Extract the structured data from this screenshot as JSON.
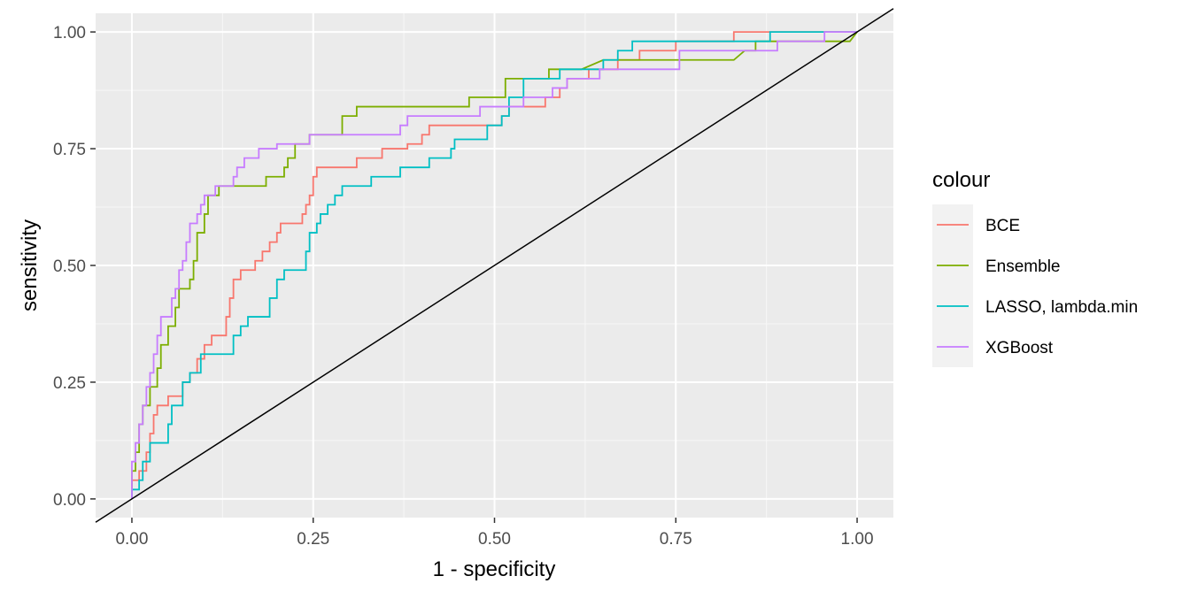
{
  "chart_data": {
    "type": "line",
    "title": "",
    "xlabel": "1 - specificity",
    "ylabel": "sensitivity",
    "xlim": [
      -0.05,
      1.05
    ],
    "ylim": [
      -0.04,
      1.04
    ],
    "x_ticks": [
      0,
      0.25,
      0.5,
      0.75,
      1
    ],
    "x_tick_labels": [
      "0.00",
      "0.25",
      "0.50",
      "0.75",
      "1.00"
    ],
    "y_ticks": [
      0,
      0.25,
      0.5,
      0.75,
      1
    ],
    "y_tick_labels": [
      "0.00",
      "0.25",
      "0.50",
      "0.75",
      "1.00"
    ],
    "grid": true,
    "background": "#ebebeb",
    "legend": {
      "title": "colour",
      "position": "right"
    },
    "reference_line": {
      "x": [
        0,
        1
      ],
      "y": [
        0,
        1
      ],
      "color": "#000000"
    },
    "series": [
      {
        "name": "BCE",
        "color": "#F8766D",
        "points": [
          [
            0,
            0
          ],
          [
            0,
            0.04
          ],
          [
            0.01,
            0.04
          ],
          [
            0.01,
            0.06
          ],
          [
            0.02,
            0.06
          ],
          [
            0.02,
            0.1
          ],
          [
            0.025,
            0.1
          ],
          [
            0.025,
            0.14
          ],
          [
            0.03,
            0.14
          ],
          [
            0.03,
            0.18
          ],
          [
            0.035,
            0.18
          ],
          [
            0.035,
            0.2
          ],
          [
            0.05,
            0.2
          ],
          [
            0.05,
            0.22
          ],
          [
            0.07,
            0.22
          ],
          [
            0.07,
            0.25
          ],
          [
            0.08,
            0.25
          ],
          [
            0.08,
            0.27
          ],
          [
            0.09,
            0.27
          ],
          [
            0.09,
            0.3
          ],
          [
            0.1,
            0.3
          ],
          [
            0.1,
            0.33
          ],
          [
            0.11,
            0.33
          ],
          [
            0.11,
            0.35
          ],
          [
            0.13,
            0.35
          ],
          [
            0.13,
            0.39
          ],
          [
            0.135,
            0.39
          ],
          [
            0.135,
            0.43
          ],
          [
            0.14,
            0.43
          ],
          [
            0.14,
            0.47
          ],
          [
            0.15,
            0.47
          ],
          [
            0.15,
            0.49
          ],
          [
            0.17,
            0.49
          ],
          [
            0.17,
            0.51
          ],
          [
            0.18,
            0.51
          ],
          [
            0.18,
            0.53
          ],
          [
            0.19,
            0.53
          ],
          [
            0.19,
            0.55
          ],
          [
            0.2,
            0.55
          ],
          [
            0.2,
            0.57
          ],
          [
            0.205,
            0.57
          ],
          [
            0.205,
            0.59
          ],
          [
            0.235,
            0.59
          ],
          [
            0.235,
            0.61
          ],
          [
            0.24,
            0.61
          ],
          [
            0.24,
            0.63
          ],
          [
            0.245,
            0.63
          ],
          [
            0.245,
            0.65
          ],
          [
            0.25,
            0.65
          ],
          [
            0.25,
            0.69
          ],
          [
            0.255,
            0.69
          ],
          [
            0.255,
            0.71
          ],
          [
            0.31,
            0.71
          ],
          [
            0.31,
            0.73
          ],
          [
            0.345,
            0.73
          ],
          [
            0.345,
            0.75
          ],
          [
            0.38,
            0.75
          ],
          [
            0.38,
            0.76
          ],
          [
            0.4,
            0.76
          ],
          [
            0.4,
            0.78
          ],
          [
            0.41,
            0.78
          ],
          [
            0.41,
            0.8
          ],
          [
            0.51,
            0.8
          ],
          [
            0.51,
            0.82
          ],
          [
            0.52,
            0.82
          ],
          [
            0.52,
            0.84
          ],
          [
            0.57,
            0.84
          ],
          [
            0.57,
            0.86
          ],
          [
            0.59,
            0.86
          ],
          [
            0.59,
            0.88
          ],
          [
            0.6,
            0.88
          ],
          [
            0.6,
            0.9
          ],
          [
            0.63,
            0.9
          ],
          [
            0.63,
            0.92
          ],
          [
            0.67,
            0.92
          ],
          [
            0.67,
            0.94
          ],
          [
            0.7,
            0.94
          ],
          [
            0.7,
            0.96
          ],
          [
            0.75,
            0.96
          ],
          [
            0.75,
            0.98
          ],
          [
            0.83,
            0.98
          ],
          [
            0.83,
            1.0
          ],
          [
            1.0,
            1.0
          ]
        ]
      },
      {
        "name": "Ensemble",
        "color": "#7CAE00",
        "points": [
          [
            0,
            0
          ],
          [
            0,
            0.06
          ],
          [
            0.005,
            0.06
          ],
          [
            0.005,
            0.1
          ],
          [
            0.01,
            0.1
          ],
          [
            0.01,
            0.16
          ],
          [
            0.015,
            0.16
          ],
          [
            0.015,
            0.2
          ],
          [
            0.025,
            0.2
          ],
          [
            0.025,
            0.24
          ],
          [
            0.035,
            0.24
          ],
          [
            0.035,
            0.28
          ],
          [
            0.04,
            0.28
          ],
          [
            0.04,
            0.33
          ],
          [
            0.05,
            0.33
          ],
          [
            0.05,
            0.37
          ],
          [
            0.06,
            0.37
          ],
          [
            0.06,
            0.41
          ],
          [
            0.065,
            0.41
          ],
          [
            0.065,
            0.45
          ],
          [
            0.08,
            0.45
          ],
          [
            0.08,
            0.47
          ],
          [
            0.085,
            0.47
          ],
          [
            0.085,
            0.51
          ],
          [
            0.09,
            0.51
          ],
          [
            0.09,
            0.57
          ],
          [
            0.1,
            0.57
          ],
          [
            0.1,
            0.61
          ],
          [
            0.105,
            0.61
          ],
          [
            0.105,
            0.65
          ],
          [
            0.12,
            0.65
          ],
          [
            0.12,
            0.67
          ],
          [
            0.185,
            0.67
          ],
          [
            0.185,
            0.69
          ],
          [
            0.21,
            0.69
          ],
          [
            0.21,
            0.71
          ],
          [
            0.215,
            0.71
          ],
          [
            0.215,
            0.73
          ],
          [
            0.225,
            0.73
          ],
          [
            0.225,
            0.76
          ],
          [
            0.245,
            0.76
          ],
          [
            0.245,
            0.78
          ],
          [
            0.29,
            0.78
          ],
          [
            0.29,
            0.82
          ],
          [
            0.31,
            0.82
          ],
          [
            0.31,
            0.84
          ],
          [
            0.465,
            0.84
          ],
          [
            0.465,
            0.86
          ],
          [
            0.515,
            0.86
          ],
          [
            0.515,
            0.9
          ],
          [
            0.575,
            0.9
          ],
          [
            0.575,
            0.92
          ],
          [
            0.62,
            0.92
          ],
          [
            0.65,
            0.94
          ],
          [
            0.83,
            0.94
          ],
          [
            0.845,
            0.96
          ],
          [
            0.86,
            0.96
          ],
          [
            0.86,
            0.98
          ],
          [
            0.99,
            0.98
          ],
          [
            1.0,
            1.0
          ]
        ]
      },
      {
        "name": "LASSO, lambda.min",
        "color": "#00BFC4",
        "points": [
          [
            0,
            0
          ],
          [
            0,
            0.02
          ],
          [
            0.01,
            0.02
          ],
          [
            0.01,
            0.04
          ],
          [
            0.015,
            0.04
          ],
          [
            0.015,
            0.08
          ],
          [
            0.025,
            0.08
          ],
          [
            0.025,
            0.12
          ],
          [
            0.05,
            0.12
          ],
          [
            0.05,
            0.16
          ],
          [
            0.055,
            0.16
          ],
          [
            0.055,
            0.2
          ],
          [
            0.07,
            0.2
          ],
          [
            0.07,
            0.25
          ],
          [
            0.08,
            0.25
          ],
          [
            0.08,
            0.27
          ],
          [
            0.095,
            0.27
          ],
          [
            0.095,
            0.31
          ],
          [
            0.14,
            0.31
          ],
          [
            0.14,
            0.35
          ],
          [
            0.15,
            0.35
          ],
          [
            0.15,
            0.37
          ],
          [
            0.16,
            0.37
          ],
          [
            0.16,
            0.39
          ],
          [
            0.19,
            0.39
          ],
          [
            0.19,
            0.43
          ],
          [
            0.2,
            0.43
          ],
          [
            0.2,
            0.47
          ],
          [
            0.21,
            0.47
          ],
          [
            0.21,
            0.49
          ],
          [
            0.24,
            0.49
          ],
          [
            0.24,
            0.53
          ],
          [
            0.245,
            0.53
          ],
          [
            0.245,
            0.57
          ],
          [
            0.255,
            0.57
          ],
          [
            0.255,
            0.59
          ],
          [
            0.26,
            0.59
          ],
          [
            0.26,
            0.61
          ],
          [
            0.27,
            0.61
          ],
          [
            0.27,
            0.63
          ],
          [
            0.28,
            0.63
          ],
          [
            0.28,
            0.65
          ],
          [
            0.29,
            0.65
          ],
          [
            0.29,
            0.67
          ],
          [
            0.33,
            0.67
          ],
          [
            0.33,
            0.69
          ],
          [
            0.37,
            0.69
          ],
          [
            0.37,
            0.71
          ],
          [
            0.41,
            0.71
          ],
          [
            0.41,
            0.73
          ],
          [
            0.44,
            0.73
          ],
          [
            0.44,
            0.75
          ],
          [
            0.445,
            0.75
          ],
          [
            0.445,
            0.77
          ],
          [
            0.49,
            0.77
          ],
          [
            0.49,
            0.8
          ],
          [
            0.51,
            0.8
          ],
          [
            0.51,
            0.82
          ],
          [
            0.52,
            0.82
          ],
          [
            0.52,
            0.86
          ],
          [
            0.54,
            0.86
          ],
          [
            0.54,
            0.9
          ],
          [
            0.59,
            0.9
          ],
          [
            0.59,
            0.92
          ],
          [
            0.65,
            0.92
          ],
          [
            0.65,
            0.94
          ],
          [
            0.67,
            0.94
          ],
          [
            0.67,
            0.96
          ],
          [
            0.69,
            0.96
          ],
          [
            0.69,
            0.98
          ],
          [
            0.88,
            0.98
          ],
          [
            0.88,
            1.0
          ],
          [
            1.0,
            1.0
          ]
        ]
      },
      {
        "name": "XGBoost",
        "color": "#C77CFF",
        "points": [
          [
            0,
            0
          ],
          [
            0,
            0.08
          ],
          [
            0.005,
            0.08
          ],
          [
            0.005,
            0.12
          ],
          [
            0.01,
            0.12
          ],
          [
            0.01,
            0.16
          ],
          [
            0.015,
            0.16
          ],
          [
            0.015,
            0.2
          ],
          [
            0.02,
            0.2
          ],
          [
            0.02,
            0.24
          ],
          [
            0.025,
            0.24
          ],
          [
            0.025,
            0.27
          ],
          [
            0.03,
            0.27
          ],
          [
            0.03,
            0.31
          ],
          [
            0.035,
            0.31
          ],
          [
            0.035,
            0.35
          ],
          [
            0.04,
            0.35
          ],
          [
            0.04,
            0.39
          ],
          [
            0.055,
            0.39
          ],
          [
            0.055,
            0.43
          ],
          [
            0.06,
            0.43
          ],
          [
            0.06,
            0.45
          ],
          [
            0.065,
            0.45
          ],
          [
            0.065,
            0.49
          ],
          [
            0.07,
            0.49
          ],
          [
            0.07,
            0.51
          ],
          [
            0.075,
            0.51
          ],
          [
            0.075,
            0.55
          ],
          [
            0.08,
            0.55
          ],
          [
            0.08,
            0.59
          ],
          [
            0.09,
            0.59
          ],
          [
            0.09,
            0.61
          ],
          [
            0.095,
            0.61
          ],
          [
            0.095,
            0.63
          ],
          [
            0.1,
            0.63
          ],
          [
            0.1,
            0.65
          ],
          [
            0.115,
            0.65
          ],
          [
            0.115,
            0.67
          ],
          [
            0.14,
            0.67
          ],
          [
            0.14,
            0.69
          ],
          [
            0.145,
            0.69
          ],
          [
            0.145,
            0.71
          ],
          [
            0.155,
            0.71
          ],
          [
            0.155,
            0.73
          ],
          [
            0.175,
            0.73
          ],
          [
            0.175,
            0.75
          ],
          [
            0.2,
            0.75
          ],
          [
            0.2,
            0.76
          ],
          [
            0.245,
            0.76
          ],
          [
            0.245,
            0.78
          ],
          [
            0.37,
            0.78
          ],
          [
            0.37,
            0.8
          ],
          [
            0.38,
            0.8
          ],
          [
            0.38,
            0.82
          ],
          [
            0.48,
            0.82
          ],
          [
            0.48,
            0.84
          ],
          [
            0.54,
            0.84
          ],
          [
            0.54,
            0.86
          ],
          [
            0.58,
            0.86
          ],
          [
            0.58,
            0.88
          ],
          [
            0.6,
            0.88
          ],
          [
            0.6,
            0.9
          ],
          [
            0.645,
            0.9
          ],
          [
            0.645,
            0.92
          ],
          [
            0.755,
            0.92
          ],
          [
            0.755,
            0.96
          ],
          [
            0.89,
            0.96
          ],
          [
            0.89,
            0.98
          ],
          [
            0.955,
            0.98
          ],
          [
            0.955,
            1.0
          ],
          [
            1.0,
            1.0
          ]
        ]
      }
    ]
  }
}
